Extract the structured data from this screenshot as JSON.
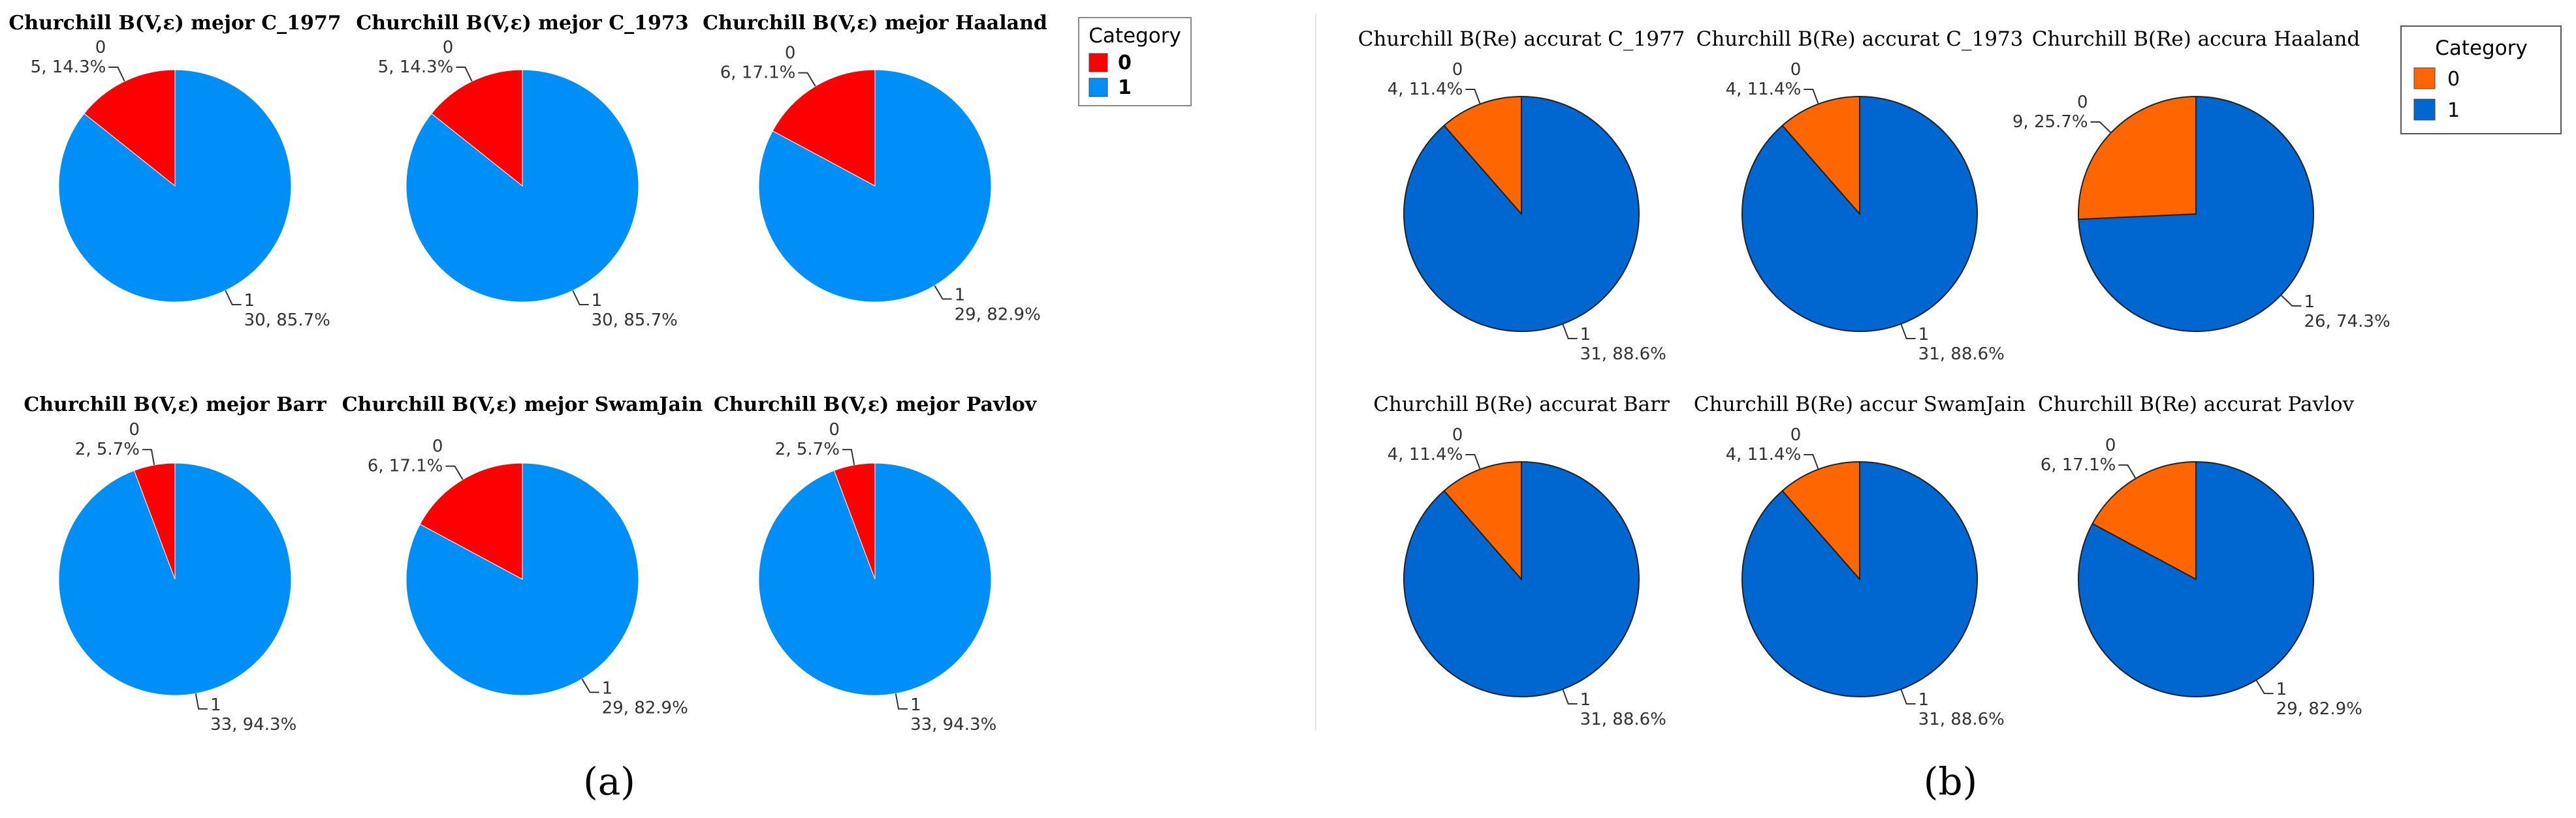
{
  "colors": {
    "a": {
      "0": "#ff0000",
      "1": "#008ef7"
    },
    "b": {
      "0": "#ff6600",
      "1": "#0066d0"
    }
  },
  "legend_a": {
    "title": "Category",
    "items": [
      "0",
      "1"
    ]
  },
  "legend_b": {
    "title": "Category",
    "items": [
      "0",
      "1"
    ]
  },
  "panel_labels": {
    "a": "(a)",
    "b": "(b)"
  },
  "chart_data": [
    {
      "type": "pie",
      "panel": "a",
      "title": "Churchill B(V,ε) mejor C_1977",
      "categories": [
        "0",
        "1"
      ],
      "values": [
        5,
        30
      ],
      "labels": [
        "5, 14.3%",
        "30, 85.7%"
      ]
    },
    {
      "type": "pie",
      "panel": "a",
      "title": "Churchill B(V,ε) mejor C_1973",
      "categories": [
        "0",
        "1"
      ],
      "values": [
        5,
        30
      ],
      "labels": [
        "5, 14.3%",
        "30, 85.7%"
      ]
    },
    {
      "type": "pie",
      "panel": "a",
      "title": "Churchill B(V,ε) mejor Haaland",
      "categories": [
        "0",
        "1"
      ],
      "values": [
        6,
        29
      ],
      "labels": [
        "6, 17.1%",
        "29, 82.9%"
      ]
    },
    {
      "type": "pie",
      "panel": "a",
      "title": "Churchill B(V,ε) mejor Barr",
      "categories": [
        "0",
        "1"
      ],
      "values": [
        2,
        33
      ],
      "labels": [
        "2, 5.7%",
        "33, 94.3%"
      ]
    },
    {
      "type": "pie",
      "panel": "a",
      "title": "Churchill B(V,ε) mejor SwamJain",
      "categories": [
        "0",
        "1"
      ],
      "values": [
        6,
        29
      ],
      "labels": [
        "6, 17.1%",
        "29, 82.9%"
      ]
    },
    {
      "type": "pie",
      "panel": "a",
      "title": "Churchill B(V,ε) mejor Pavlov",
      "categories": [
        "0",
        "1"
      ],
      "values": [
        2,
        33
      ],
      "labels": [
        "2, 5.7%",
        "33, 94.3%"
      ]
    },
    {
      "type": "pie",
      "panel": "b",
      "title": "Churchill B(Re) accurat C_1977",
      "categories": [
        "0",
        "1"
      ],
      "values": [
        4,
        31
      ],
      "labels": [
        "4, 11.4%",
        "31, 88.6%"
      ]
    },
    {
      "type": "pie",
      "panel": "b",
      "title": "Churchill B(Re) accurat C_1973",
      "categories": [
        "0",
        "1"
      ],
      "values": [
        4,
        31
      ],
      "labels": [
        "4, 11.4%",
        "31, 88.6%"
      ]
    },
    {
      "type": "pie",
      "panel": "b",
      "title": "Churchill B(Re) accura Haaland",
      "categories": [
        "0",
        "1"
      ],
      "values": [
        9,
        26
      ],
      "labels": [
        "9, 25.7%",
        "26, 74.3%"
      ]
    },
    {
      "type": "pie",
      "panel": "b",
      "title": "Churchill B(Re) accurat Barr",
      "categories": [
        "0",
        "1"
      ],
      "values": [
        4,
        31
      ],
      "labels": [
        "4, 11.4%",
        "31, 88.6%"
      ]
    },
    {
      "type": "pie",
      "panel": "b",
      "title": "Churchill B(Re) accur SwamJain",
      "categories": [
        "0",
        "1"
      ],
      "values": [
        4,
        31
      ],
      "labels": [
        "4, 11.4%",
        "31, 88.6%"
      ]
    },
    {
      "type": "pie",
      "panel": "b",
      "title": "Churchill B(Re) accurat Pavlov",
      "categories": [
        "0",
        "1"
      ],
      "values": [
        6,
        29
      ],
      "labels": [
        "6, 17.1%",
        "29, 82.9%"
      ]
    }
  ]
}
